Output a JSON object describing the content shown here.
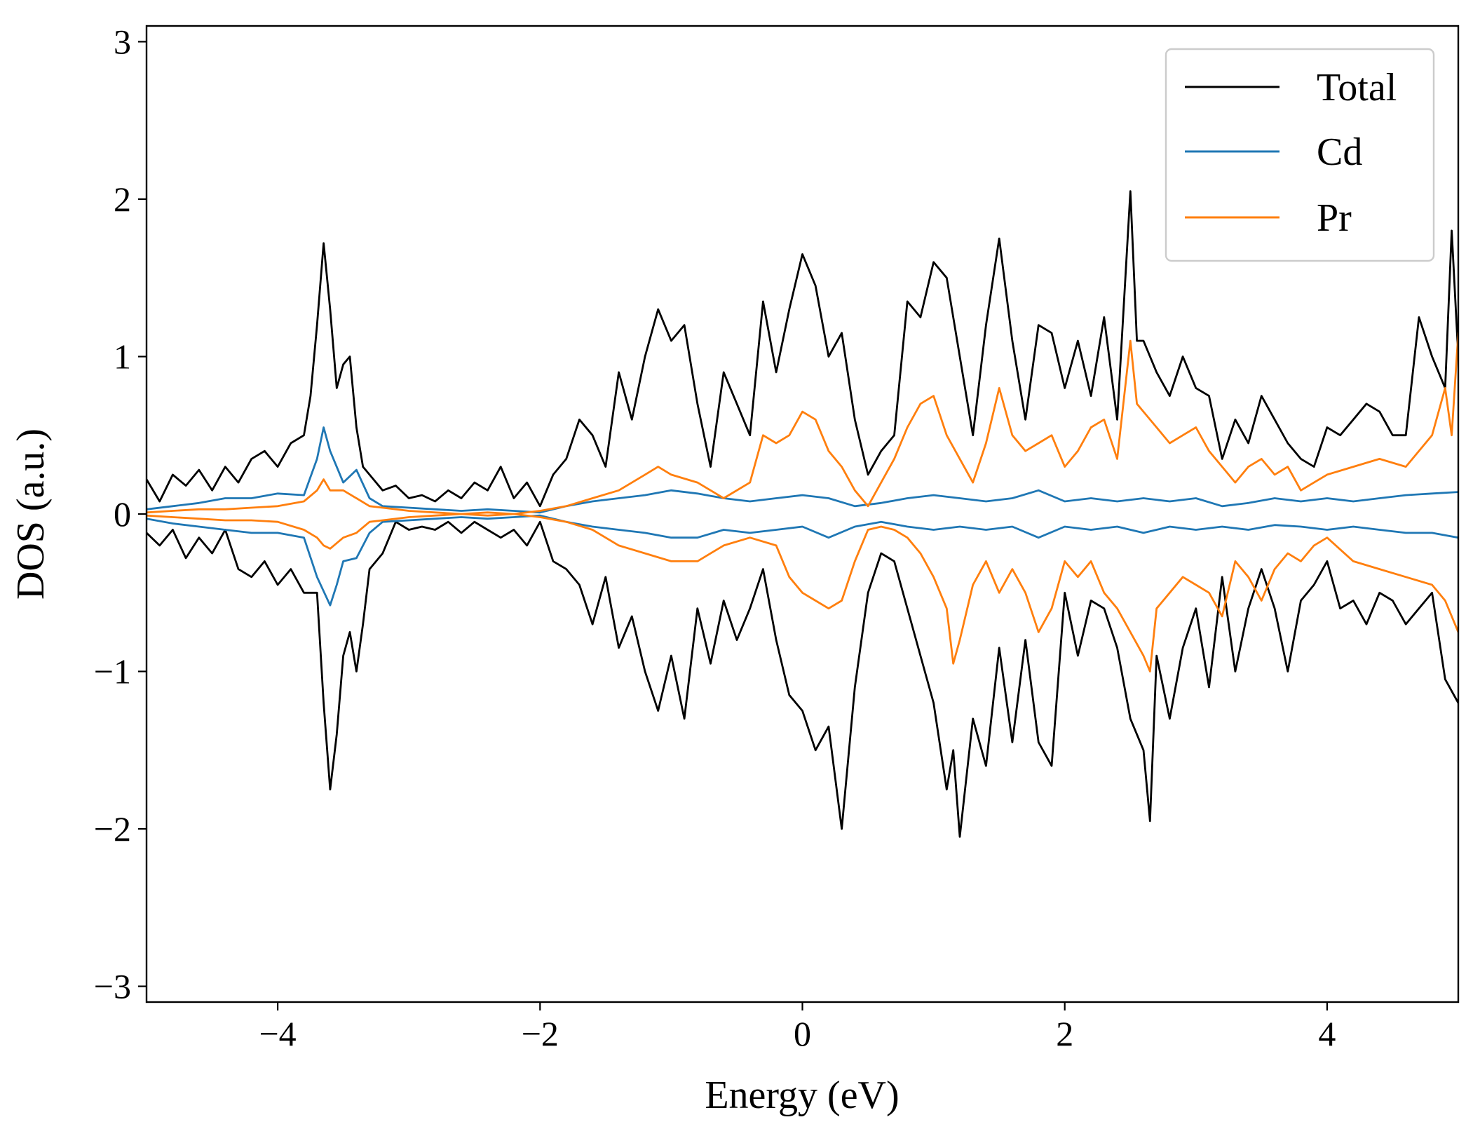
{
  "chart_data": {
    "type": "line",
    "xlabel": "Energy (eV)",
    "ylabel": "DOS (a.u.)",
    "xlim": [
      -5,
      5
    ],
    "ylim": [
      -3.1,
      3.1
    ],
    "xticks": [
      -4,
      -2,
      0,
      2,
      4
    ],
    "xtick_labels": [
      "−4",
      "−2",
      "0",
      "2",
      "4"
    ],
    "yticks": [
      -3,
      -2,
      -1,
      0,
      1,
      2,
      3
    ],
    "ytick_labels": [
      "−3",
      "−2",
      "−1",
      "0",
      "1",
      "2",
      "3"
    ],
    "grid": false,
    "legend": {
      "position": "top-right",
      "entries": [
        "Total",
        "Cd",
        "Pr"
      ]
    },
    "colors": {
      "Total": "#000000",
      "Cd": "#1f77b4",
      "Pr": "#ff7f0e"
    },
    "series": [
      {
        "name": "Total",
        "spin": "up",
        "x": [
          -5.0,
          -4.9,
          -4.8,
          -4.7,
          -4.6,
          -4.5,
          -4.4,
          -4.3,
          -4.2,
          -4.1,
          -4.0,
          -3.9,
          -3.8,
          -3.75,
          -3.7,
          -3.65,
          -3.6,
          -3.55,
          -3.5,
          -3.45,
          -3.4,
          -3.35,
          -3.3,
          -3.2,
          -3.1,
          -3.0,
          -2.9,
          -2.8,
          -2.7,
          -2.6,
          -2.5,
          -2.4,
          -2.3,
          -2.2,
          -2.1,
          -2.0,
          -1.9,
          -1.8,
          -1.7,
          -1.6,
          -1.5,
          -1.4,
          -1.3,
          -1.2,
          -1.1,
          -1.0,
          -0.9,
          -0.8,
          -0.7,
          -0.6,
          -0.5,
          -0.4,
          -0.3,
          -0.2,
          -0.1,
          0.0,
          0.1,
          0.2,
          0.3,
          0.4,
          0.5,
          0.6,
          0.7,
          0.8,
          0.9,
          1.0,
          1.1,
          1.2,
          1.3,
          1.4,
          1.5,
          1.6,
          1.7,
          1.8,
          1.9,
          2.0,
          2.1,
          2.2,
          2.3,
          2.4,
          2.5,
          2.55,
          2.6,
          2.7,
          2.8,
          2.9,
          3.0,
          3.1,
          3.2,
          3.3,
          3.4,
          3.5,
          3.6,
          3.7,
          3.8,
          3.9,
          4.0,
          4.1,
          4.2,
          4.3,
          4.4,
          4.5,
          4.6,
          4.7,
          4.8,
          4.9,
          4.95,
          5.0
        ],
        "y": [
          0.22,
          0.08,
          0.25,
          0.18,
          0.28,
          0.15,
          0.3,
          0.2,
          0.35,
          0.4,
          0.3,
          0.45,
          0.5,
          0.75,
          1.2,
          1.72,
          1.3,
          0.8,
          0.95,
          1.0,
          0.55,
          0.3,
          0.25,
          0.15,
          0.18,
          0.1,
          0.12,
          0.08,
          0.15,
          0.1,
          0.2,
          0.15,
          0.3,
          0.1,
          0.2,
          0.05,
          0.25,
          0.35,
          0.6,
          0.5,
          0.3,
          0.9,
          0.6,
          1.0,
          1.3,
          1.1,
          1.2,
          0.7,
          0.3,
          0.9,
          0.7,
          0.5,
          1.35,
          0.9,
          1.3,
          1.65,
          1.45,
          1.0,
          1.15,
          0.6,
          0.25,
          0.4,
          0.5,
          1.35,
          1.25,
          1.6,
          1.5,
          1.0,
          0.5,
          1.2,
          1.75,
          1.1,
          0.6,
          1.2,
          1.15,
          0.8,
          1.1,
          0.75,
          1.25,
          0.6,
          2.05,
          1.1,
          1.1,
          0.9,
          0.75,
          1.0,
          0.8,
          0.75,
          0.35,
          0.6,
          0.45,
          0.75,
          0.6,
          0.45,
          0.35,
          0.3,
          0.55,
          0.5,
          0.6,
          0.7,
          0.65,
          0.5,
          0.5,
          1.25,
          1.0,
          0.8,
          1.8,
          1.0
        ]
      },
      {
        "name": "Total",
        "spin": "down",
        "x": [
          -5.0,
          -4.9,
          -4.8,
          -4.7,
          -4.6,
          -4.5,
          -4.4,
          -4.3,
          -4.2,
          -4.1,
          -4.0,
          -3.9,
          -3.8,
          -3.7,
          -3.65,
          -3.6,
          -3.55,
          -3.5,
          -3.45,
          -3.4,
          -3.35,
          -3.3,
          -3.2,
          -3.1,
          -3.0,
          -2.9,
          -2.8,
          -2.7,
          -2.6,
          -2.5,
          -2.4,
          -2.3,
          -2.2,
          -2.1,
          -2.0,
          -1.9,
          -1.8,
          -1.7,
          -1.6,
          -1.5,
          -1.4,
          -1.3,
          -1.2,
          -1.1,
          -1.0,
          -0.9,
          -0.8,
          -0.7,
          -0.6,
          -0.5,
          -0.4,
          -0.3,
          -0.2,
          -0.1,
          0.0,
          0.1,
          0.2,
          0.3,
          0.4,
          0.5,
          0.6,
          0.7,
          0.8,
          0.9,
          1.0,
          1.1,
          1.15,
          1.2,
          1.3,
          1.4,
          1.5,
          1.6,
          1.7,
          1.8,
          1.9,
          2.0,
          2.1,
          2.2,
          2.3,
          2.4,
          2.5,
          2.6,
          2.65,
          2.7,
          2.8,
          2.9,
          3.0,
          3.1,
          3.2,
          3.3,
          3.4,
          3.5,
          3.6,
          3.7,
          3.8,
          3.9,
          4.0,
          4.1,
          4.2,
          4.3,
          4.4,
          4.5,
          4.6,
          4.7,
          4.8,
          4.9,
          5.0
        ],
        "y": [
          -0.12,
          -0.2,
          -0.1,
          -0.28,
          -0.15,
          -0.25,
          -0.1,
          -0.35,
          -0.4,
          -0.3,
          -0.45,
          -0.35,
          -0.5,
          -0.5,
          -1.2,
          -1.75,
          -1.4,
          -0.9,
          -0.75,
          -1.0,
          -0.7,
          -0.35,
          -0.25,
          -0.05,
          -0.1,
          -0.08,
          -0.1,
          -0.05,
          -0.12,
          -0.05,
          -0.1,
          -0.15,
          -0.1,
          -0.2,
          -0.05,
          -0.3,
          -0.35,
          -0.45,
          -0.7,
          -0.4,
          -0.85,
          -0.65,
          -1.0,
          -1.25,
          -0.9,
          -1.3,
          -0.6,
          -0.95,
          -0.55,
          -0.8,
          -0.6,
          -0.35,
          -0.8,
          -1.15,
          -1.25,
          -1.5,
          -1.35,
          -2.0,
          -1.1,
          -0.5,
          -0.25,
          -0.3,
          -0.6,
          -0.9,
          -1.2,
          -1.75,
          -1.5,
          -2.05,
          -1.3,
          -1.6,
          -0.85,
          -1.45,
          -0.8,
          -1.45,
          -1.6,
          -0.5,
          -0.9,
          -0.55,
          -0.6,
          -0.85,
          -1.3,
          -1.5,
          -1.95,
          -0.9,
          -1.3,
          -0.85,
          -0.6,
          -1.1,
          -0.4,
          -1.0,
          -0.6,
          -0.35,
          -0.6,
          -1.0,
          -0.55,
          -0.45,
          -0.3,
          -0.6,
          -0.55,
          -0.7,
          -0.5,
          -0.55,
          -0.7,
          -0.6,
          -0.5,
          -1.05,
          -1.2
        ]
      },
      {
        "name": "Cd",
        "spin": "up",
        "x": [
          -5.0,
          -4.8,
          -4.6,
          -4.4,
          -4.2,
          -4.0,
          -3.8,
          -3.7,
          -3.65,
          -3.6,
          -3.5,
          -3.4,
          -3.3,
          -3.2,
          -3.0,
          -2.8,
          -2.6,
          -2.4,
          -2.2,
          -2.0,
          -1.8,
          -1.6,
          -1.4,
          -1.2,
          -1.0,
          -0.8,
          -0.6,
          -0.4,
          -0.2,
          0.0,
          0.2,
          0.4,
          0.6,
          0.8,
          1.0,
          1.2,
          1.4,
          1.6,
          1.8,
          2.0,
          2.2,
          2.4,
          2.6,
          2.8,
          3.0,
          3.2,
          3.4,
          3.6,
          3.8,
          4.0,
          4.2,
          4.4,
          4.6,
          4.8,
          5.0
        ],
        "y": [
          0.03,
          0.05,
          0.07,
          0.1,
          0.1,
          0.13,
          0.12,
          0.35,
          0.55,
          0.4,
          0.2,
          0.28,
          0.1,
          0.05,
          0.04,
          0.03,
          0.02,
          0.03,
          0.02,
          0.01,
          0.05,
          0.08,
          0.1,
          0.12,
          0.15,
          0.13,
          0.1,
          0.08,
          0.1,
          0.12,
          0.1,
          0.05,
          0.07,
          0.1,
          0.12,
          0.1,
          0.08,
          0.1,
          0.15,
          0.08,
          0.1,
          0.08,
          0.1,
          0.08,
          0.1,
          0.05,
          0.07,
          0.1,
          0.08,
          0.1,
          0.08,
          0.1,
          0.12,
          0.13,
          0.14
        ]
      },
      {
        "name": "Cd",
        "spin": "down",
        "x": [
          -5.0,
          -4.8,
          -4.6,
          -4.4,
          -4.2,
          -4.0,
          -3.8,
          -3.7,
          -3.6,
          -3.55,
          -3.5,
          -3.4,
          -3.3,
          -3.2,
          -3.0,
          -2.8,
          -2.6,
          -2.4,
          -2.2,
          -2.0,
          -1.8,
          -1.6,
          -1.4,
          -1.2,
          -1.0,
          -0.8,
          -0.6,
          -0.4,
          -0.2,
          0.0,
          0.2,
          0.4,
          0.6,
          0.8,
          1.0,
          1.2,
          1.4,
          1.6,
          1.8,
          2.0,
          2.2,
          2.4,
          2.6,
          2.8,
          3.0,
          3.2,
          3.4,
          3.6,
          3.8,
          4.0,
          4.2,
          4.4,
          4.6,
          4.8,
          5.0
        ],
        "y": [
          -0.03,
          -0.06,
          -0.08,
          -0.1,
          -0.12,
          -0.12,
          -0.15,
          -0.4,
          -0.58,
          -0.45,
          -0.3,
          -0.28,
          -0.12,
          -0.05,
          -0.04,
          -0.03,
          -0.02,
          -0.03,
          -0.02,
          -0.01,
          -0.05,
          -0.08,
          -0.1,
          -0.12,
          -0.15,
          -0.15,
          -0.1,
          -0.12,
          -0.1,
          -0.08,
          -0.15,
          -0.08,
          -0.05,
          -0.08,
          -0.1,
          -0.08,
          -0.1,
          -0.08,
          -0.15,
          -0.08,
          -0.1,
          -0.08,
          -0.12,
          -0.08,
          -0.1,
          -0.08,
          -0.1,
          -0.07,
          -0.08,
          -0.1,
          -0.08,
          -0.1,
          -0.12,
          -0.12,
          -0.15
        ]
      },
      {
        "name": "Pr",
        "spin": "up",
        "x": [
          -5.0,
          -4.8,
          -4.6,
          -4.4,
          -4.2,
          -4.0,
          -3.8,
          -3.7,
          -3.65,
          -3.6,
          -3.5,
          -3.4,
          -3.3,
          -3.2,
          -3.0,
          -2.8,
          -2.6,
          -2.4,
          -2.2,
          -2.0,
          -1.8,
          -1.6,
          -1.4,
          -1.2,
          -1.1,
          -1.0,
          -0.8,
          -0.6,
          -0.4,
          -0.3,
          -0.2,
          -0.1,
          0.0,
          0.1,
          0.2,
          0.3,
          0.4,
          0.5,
          0.6,
          0.7,
          0.8,
          0.9,
          1.0,
          1.1,
          1.2,
          1.3,
          1.4,
          1.5,
          1.6,
          1.7,
          1.8,
          1.9,
          2.0,
          2.1,
          2.2,
          2.3,
          2.4,
          2.5,
          2.55,
          2.6,
          2.7,
          2.8,
          2.9,
          3.0,
          3.1,
          3.2,
          3.3,
          3.4,
          3.5,
          3.6,
          3.7,
          3.8,
          3.9,
          4.0,
          4.2,
          4.4,
          4.6,
          4.8,
          4.9,
          4.95,
          5.0
        ],
        "y": [
          0.01,
          0.02,
          0.03,
          0.03,
          0.04,
          0.05,
          0.08,
          0.15,
          0.22,
          0.15,
          0.15,
          0.1,
          0.05,
          0.04,
          0.02,
          0.01,
          0.0,
          0.01,
          0.0,
          0.02,
          0.05,
          0.1,
          0.15,
          0.25,
          0.3,
          0.25,
          0.2,
          0.1,
          0.2,
          0.5,
          0.45,
          0.5,
          0.65,
          0.6,
          0.4,
          0.3,
          0.15,
          0.05,
          0.2,
          0.35,
          0.55,
          0.7,
          0.75,
          0.5,
          0.35,
          0.2,
          0.45,
          0.8,
          0.5,
          0.4,
          0.45,
          0.5,
          0.3,
          0.4,
          0.55,
          0.6,
          0.35,
          1.1,
          0.7,
          0.65,
          0.55,
          0.45,
          0.5,
          0.55,
          0.4,
          0.3,
          0.2,
          0.3,
          0.35,
          0.25,
          0.3,
          0.15,
          0.2,
          0.25,
          0.3,
          0.35,
          0.3,
          0.5,
          0.8,
          0.5,
          1.15
        ]
      },
      {
        "name": "Pr",
        "spin": "down",
        "x": [
          -5.0,
          -4.8,
          -4.6,
          -4.4,
          -4.2,
          -4.0,
          -3.8,
          -3.7,
          -3.65,
          -3.6,
          -3.5,
          -3.4,
          -3.3,
          -3.2,
          -3.0,
          -2.8,
          -2.6,
          -2.4,
          -2.2,
          -2.0,
          -1.8,
          -1.6,
          -1.4,
          -1.2,
          -1.0,
          -0.8,
          -0.6,
          -0.4,
          -0.2,
          -0.1,
          0.0,
          0.1,
          0.2,
          0.3,
          0.4,
          0.5,
          0.6,
          0.7,
          0.8,
          0.9,
          1.0,
          1.1,
          1.15,
          1.2,
          1.3,
          1.4,
          1.5,
          1.6,
          1.7,
          1.8,
          1.9,
          2.0,
          2.1,
          2.2,
          2.3,
          2.4,
          2.5,
          2.6,
          2.65,
          2.7,
          2.8,
          2.9,
          3.0,
          3.1,
          3.2,
          3.3,
          3.4,
          3.5,
          3.6,
          3.7,
          3.8,
          3.9,
          4.0,
          4.2,
          4.4,
          4.6,
          4.8,
          4.9,
          5.0
        ],
        "y": [
          -0.01,
          -0.02,
          -0.03,
          -0.04,
          -0.04,
          -0.05,
          -0.1,
          -0.15,
          -0.2,
          -0.22,
          -0.15,
          -0.12,
          -0.05,
          -0.04,
          -0.02,
          -0.01,
          0.0,
          -0.01,
          0.0,
          -0.02,
          -0.05,
          -0.1,
          -0.2,
          -0.25,
          -0.3,
          -0.3,
          -0.2,
          -0.15,
          -0.2,
          -0.4,
          -0.5,
          -0.55,
          -0.6,
          -0.55,
          -0.3,
          -0.1,
          -0.08,
          -0.1,
          -0.15,
          -0.25,
          -0.4,
          -0.6,
          -0.95,
          -0.8,
          -0.45,
          -0.3,
          -0.5,
          -0.35,
          -0.5,
          -0.75,
          -0.6,
          -0.3,
          -0.4,
          -0.3,
          -0.5,
          -0.6,
          -0.75,
          -0.9,
          -1.0,
          -0.6,
          -0.5,
          -0.4,
          -0.45,
          -0.5,
          -0.65,
          -0.3,
          -0.4,
          -0.55,
          -0.35,
          -0.25,
          -0.3,
          -0.2,
          -0.15,
          -0.3,
          -0.35,
          -0.4,
          -0.45,
          -0.55,
          -0.75
        ]
      }
    ]
  }
}
